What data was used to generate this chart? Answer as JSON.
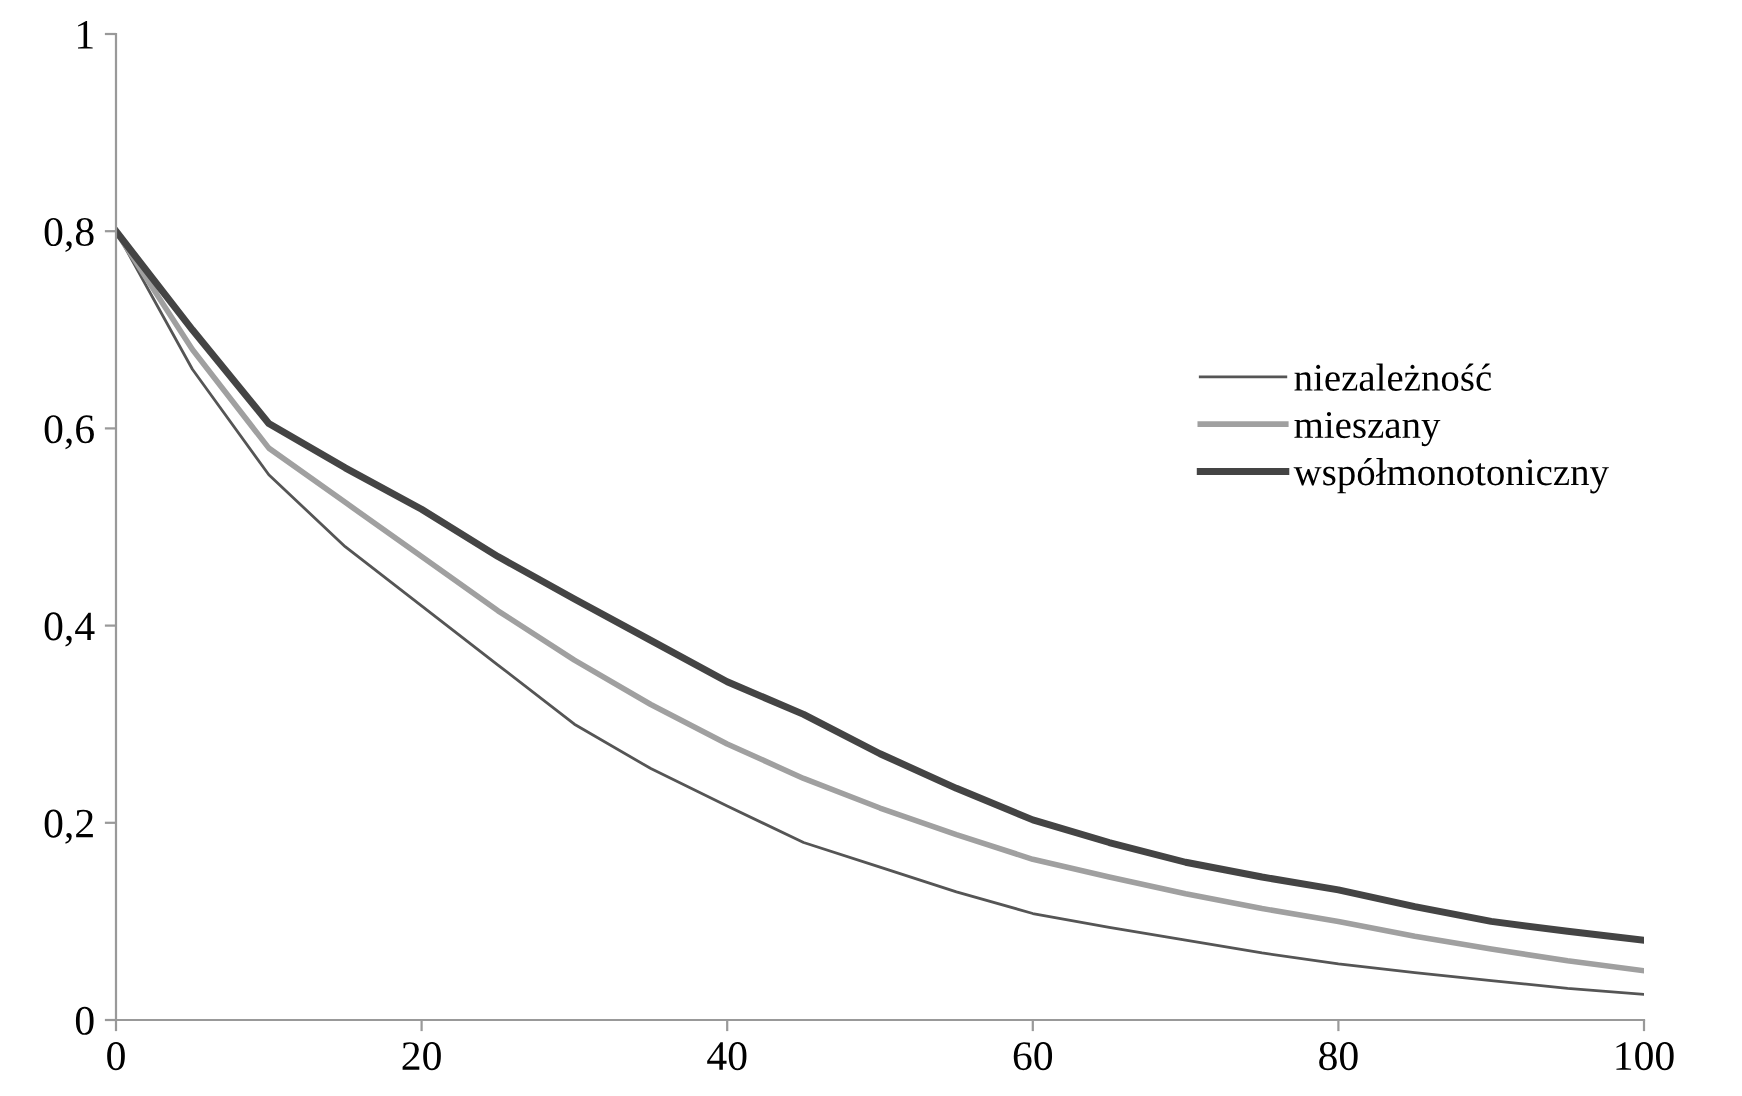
{
  "chart_data": {
    "type": "line",
    "x": [
      0,
      5,
      10,
      15,
      20,
      25,
      30,
      35,
      40,
      45,
      50,
      55,
      60,
      65,
      70,
      75,
      80,
      85,
      90,
      95,
      100
    ],
    "series": [
      {
        "name": "niezależność",
        "color": "#555555",
        "values": [
          0.8,
          0.66,
          0.553,
          0.48,
          0.42,
          0.36,
          0.3,
          0.255,
          0.217,
          0.18,
          0.155,
          0.13,
          0.108,
          0.094,
          0.081,
          0.068,
          0.057,
          0.048,
          0.04,
          0.032,
          0.026
        ]
      },
      {
        "name": "mieszany",
        "color": "#a0a0a0",
        "values": [
          0.8,
          0.68,
          0.58,
          0.525,
          0.47,
          0.415,
          0.365,
          0.32,
          0.28,
          0.245,
          0.215,
          0.188,
          0.163,
          0.145,
          0.128,
          0.113,
          0.1,
          0.085,
          0.072,
          0.06,
          0.05
        ]
      },
      {
        "name": "współmonotoniczny",
        "color": "#444444",
        "values": [
          0.8,
          0.7,
          0.605,
          0.56,
          0.518,
          0.47,
          0.427,
          0.385,
          0.343,
          0.31,
          0.27,
          0.235,
          0.203,
          0.18,
          0.16,
          0.145,
          0.132,
          0.115,
          0.1,
          0.09,
          0.081
        ]
      }
    ],
    "xlim": [
      0,
      100
    ],
    "xticks": [
      0,
      20,
      40,
      60,
      80,
      100
    ],
    "ylim": [
      0,
      1
    ],
    "yticks": [
      0,
      {
        "value": 0.2,
        "label": "0,2"
      },
      {
        "value": 0.4,
        "label": "0,4"
      },
      {
        "value": 0.6,
        "label": "0,6"
      },
      {
        "value": 0.8,
        "label": "0,8"
      },
      1
    ],
    "grid": false,
    "legend": "right",
    "marker": "none",
    "line_style": "solid"
  }
}
